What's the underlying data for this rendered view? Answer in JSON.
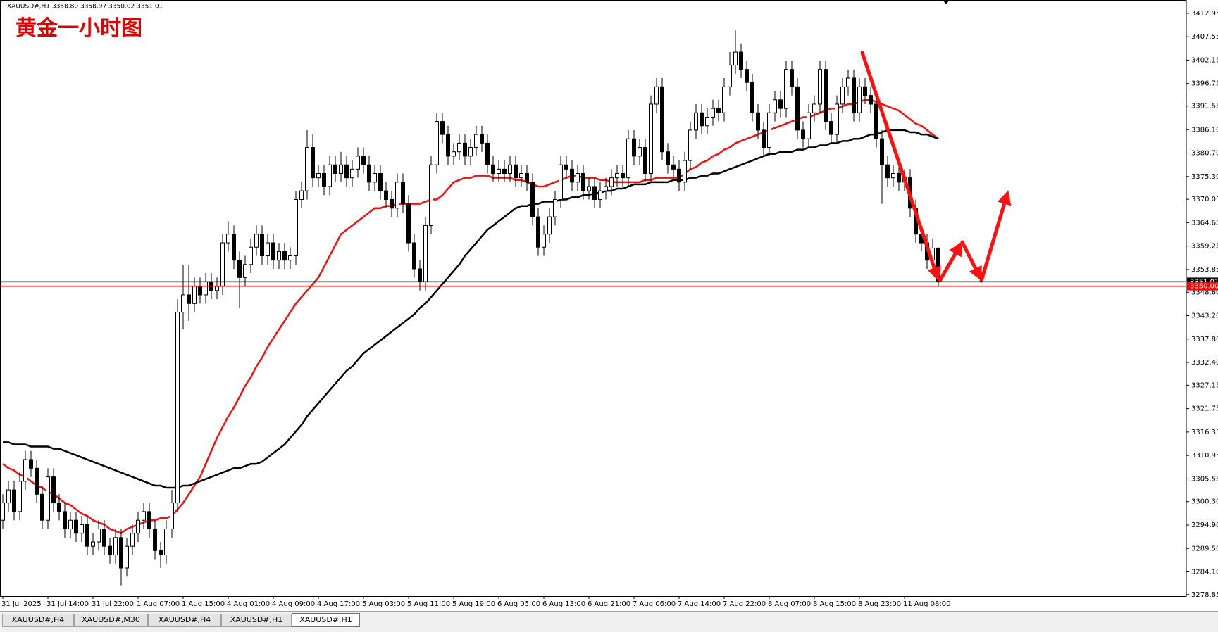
{
  "chart_data": {
    "type": "candlestick",
    "title": "黄金一小时图",
    "header": "XAUUSD#,H1  3358.80 3358.97 3350.02 3351.01",
    "categories": [
      "31 Jul 2025",
      null,
      null,
      null,
      null,
      null,
      null,
      null,
      "31 Jul 14:00",
      null,
      null,
      null,
      null,
      null,
      null,
      null,
      "31 Jul 22:00",
      null,
      null,
      null,
      null,
      null,
      null,
      null,
      "1 Aug 07:00",
      null,
      null,
      null,
      null,
      null,
      null,
      null,
      "1 Aug 15:00",
      null,
      null,
      null,
      null,
      null,
      null,
      null,
      "4 Aug 01:00",
      null,
      null,
      null,
      null,
      null,
      null,
      null,
      "4 Aug 09:00",
      null,
      null,
      null,
      null,
      null,
      null,
      null,
      "4 Aug 17:00",
      null,
      null,
      null,
      null,
      null,
      null,
      null,
      "5 Aug 03:00",
      null,
      null,
      null,
      null,
      null,
      null,
      null,
      "5 Aug 11:00",
      null,
      null,
      null,
      null,
      null,
      null,
      null,
      "5 Aug 19:00",
      null,
      null,
      null,
      null,
      null,
      null,
      null,
      "6 Aug 05:00",
      null,
      null,
      null,
      null,
      null,
      null,
      null,
      "6 Aug 13:00",
      null,
      null,
      null,
      null,
      null,
      null,
      null,
      "6 Aug 21:00",
      null,
      null,
      null,
      null,
      null,
      null,
      null,
      "7 Aug 06:00",
      null,
      null,
      null,
      null,
      null,
      null,
      null,
      "7 Aug 14:00",
      null,
      null,
      null,
      null,
      null,
      null,
      null,
      "7 Aug 22:00",
      null,
      null,
      null,
      null,
      null,
      null,
      null,
      "8 Aug 07:00",
      null,
      null,
      null,
      null,
      null,
      null,
      null,
      "8 Aug 15:00",
      null,
      null,
      null,
      null,
      null,
      null,
      null,
      "8 Aug 23:00",
      null,
      null,
      null,
      null,
      null,
      null,
      null,
      "11 Aug 08:00",
      null,
      null,
      null,
      null,
      null,
      null
    ],
    "open": [
      3296,
      3300,
      3303,
      3298,
      3305,
      3310,
      3308,
      3302,
      3296,
      3306,
      3300,
      3298,
      3294,
      3296,
      3293,
      3295,
      3290,
      3291,
      3294,
      3290,
      3288,
      3292,
      3285,
      3290,
      3293,
      3296,
      3298,
      3294,
      3289,
      3288,
      3294,
      3300,
      3344,
      3348,
      3346,
      3350,
      3348,
      3351,
      3349,
      3350,
      3360,
      3362,
      3356,
      3352,
      3355,
      3359,
      3362,
      3357,
      3360,
      3356,
      3358,
      3356,
      3357,
      3370,
      3372,
      3382,
      3375,
      3376,
      3373,
      3378,
      3376,
      3378,
      3375,
      3377,
      3380,
      3378,
      3374,
      3376,
      3372,
      3370,
      3368,
      3374,
      3369,
      3360,
      3354,
      3351,
      3364,
      3378,
      3388,
      3385,
      3380,
      3381,
      3383,
      3380,
      3382,
      3385,
      3383,
      3378,
      3376,
      3377,
      3376,
      3378,
      3375,
      3376,
      3374,
      3366,
      3359,
      3362,
      3366,
      3370,
      3378,
      3377,
      3374,
      3376,
      3372,
      3373,
      3370,
      3372,
      3373,
      3375,
      3376,
      3375,
      3384,
      3380,
      3382,
      3376,
      3392,
      3396,
      3381,
      3378,
      3377,
      3374,
      3379,
      3386,
      3390,
      3387,
      3389,
      3391,
      3390,
      3396,
      3401,
      3404,
      3400,
      3397,
      3390,
      3386,
      3382,
      3390,
      3393,
      3391,
      3400,
      3396,
      3386,
      3384,
      3390,
      3392,
      3400,
      3388,
      3385,
      3392,
      3396,
      3398,
      3390,
      3396,
      3394,
      3392,
      3384,
      3378,
      3375,
      3376,
      3374,
      3375,
      3368,
      3362,
      3360,
      3356,
      3358.8
    ],
    "high": [
      3302,
      3305,
      3305,
      3307,
      3312,
      3312,
      3310,
      3304,
      3308,
      3308,
      3302,
      3300,
      3298,
      3298,
      3297,
      3297,
      3293,
      3296,
      3296,
      3292,
      3294,
      3294,
      3292,
      3295,
      3298,
      3300,
      3300,
      3296,
      3291,
      3296,
      3303,
      3347,
      3355,
      3355,
      3352,
      3352,
      3353,
      3353,
      3352,
      3362,
      3365,
      3364,
      3358,
      3357,
      3361,
      3364,
      3364,
      3362,
      3362,
      3360,
      3360,
      3359,
      3372,
      3374,
      3386,
      3385,
      3378,
      3378,
      3380,
      3380,
      3381,
      3380,
      3379,
      3382,
      3382,
      3380,
      3378,
      3378,
      3374,
      3372,
      3376,
      3376,
      3371,
      3362,
      3356,
      3366,
      3380,
      3390,
      3390,
      3387,
      3383,
      3385,
      3385,
      3384,
      3387,
      3387,
      3385,
      3380,
      3379,
      3379,
      3380,
      3380,
      3378,
      3378,
      3376,
      3368,
      3364,
      3368,
      3372,
      3380,
      3380,
      3379,
      3378,
      3378,
      3375,
      3375,
      3374,
      3375,
      3377,
      3378,
      3378,
      3386,
      3386,
      3384,
      3384,
      3394,
      3398,
      3398,
      3383,
      3380,
      3379,
      3381,
      3388,
      3392,
      3392,
      3391,
      3393,
      3393,
      3398,
      3404,
      3409,
      3406,
      3402,
      3399,
      3392,
      3388,
      3392,
      3395,
      3395,
      3402,
      3402,
      3398,
      3388,
      3392,
      3394,
      3402,
      3402,
      3390,
      3394,
      3398,
      3400,
      3400,
      3398,
      3398,
      3396,
      3394,
      3386,
      3380,
      3378,
      3378,
      3377,
      3377,
      3370,
      3364,
      3362,
      3361,
      3358.97
    ],
    "low": [
      3294,
      3298,
      3296,
      3296,
      3303,
      3306,
      3300,
      3294,
      3294,
      3298,
      3296,
      3292,
      3292,
      3291,
      3291,
      3288,
      3288,
      3289,
      3288,
      3286,
      3286,
      3281,
      3283,
      3288,
      3291,
      3294,
      3292,
      3287,
      3285,
      3286,
      3292,
      3298,
      3340,
      3342,
      3344,
      3346,
      3346,
      3347,
      3347,
      3348,
      3358,
      3354,
      3345,
      3350,
      3353,
      3357,
      3355,
      3355,
      3354,
      3354,
      3354,
      3354,
      3355,
      3368,
      3370,
      3373,
      3373,
      3371,
      3371,
      3374,
      3374,
      3373,
      3373,
      3375,
      3376,
      3372,
      3372,
      3370,
      3368,
      3366,
      3366,
      3367,
      3358,
      3352,
      3349,
      3349,
      3362,
      3376,
      3383,
      3378,
      3378,
      3379,
      3378,
      3378,
      3380,
      3381,
      3376,
      3374,
      3374,
      3374,
      3374,
      3373,
      3373,
      3372,
      3364,
      3357,
      3357,
      3360,
      3364,
      3368,
      3375,
      3372,
      3372,
      3370,
      3370,
      3368,
      3368,
      3370,
      3371,
      3373,
      3373,
      3373,
      3378,
      3378,
      3374,
      3374,
      3390,
      3379,
      3376,
      3375,
      3372,
      3372,
      3377,
      3384,
      3385,
      3385,
      3387,
      3388,
      3388,
      3394,
      3399,
      3398,
      3395,
      3388,
      3384,
      3380,
      3380,
      3388,
      3389,
      3389,
      3394,
      3384,
      3382,
      3382,
      3388,
      3390,
      3386,
      3383,
      3383,
      3390,
      3394,
      3388,
      3388,
      3392,
      3390,
      3382,
      3369,
      3373,
      3373,
      3372,
      3372,
      3366,
      3360,
      3358,
      3354,
      3353,
      3350.02
    ],
    "close": [
      3300,
      3303,
      3298,
      3305,
      3310,
      3308,
      3302,
      3296,
      3306,
      3300,
      3298,
      3294,
      3296,
      3293,
      3295,
      3290,
      3291,
      3294,
      3290,
      3288,
      3292,
      3285,
      3290,
      3293,
      3296,
      3298,
      3294,
      3289,
      3288,
      3294,
      3300,
      3344,
      3348,
      3346,
      3350,
      3348,
      3351,
      3349,
      3350,
      3360,
      3362,
      3356,
      3352,
      3355,
      3359,
      3362,
      3357,
      3360,
      3356,
      3358,
      3356,
      3357,
      3370,
      3372,
      3382,
      3375,
      3376,
      3373,
      3378,
      3376,
      3378,
      3375,
      3377,
      3380,
      3378,
      3374,
      3376,
      3372,
      3370,
      3368,
      3374,
      3369,
      3360,
      3354,
      3351,
      3364,
      3378,
      3388,
      3385,
      3380,
      3381,
      3383,
      3380,
      3382,
      3385,
      3383,
      3378,
      3376,
      3377,
      3376,
      3378,
      3375,
      3376,
      3374,
      3366,
      3359,
      3362,
      3366,
      3370,
      3378,
      3377,
      3374,
      3376,
      3372,
      3373,
      3370,
      3372,
      3373,
      3375,
      3376,
      3375,
      3384,
      3380,
      3382,
      3376,
      3392,
      3396,
      3381,
      3378,
      3377,
      3374,
      3379,
      3386,
      3390,
      3387,
      3389,
      3391,
      3390,
      3396,
      3401,
      3404,
      3400,
      3397,
      3390,
      3386,
      3382,
      3390,
      3393,
      3391,
      3400,
      3396,
      3386,
      3384,
      3390,
      3392,
      3400,
      3388,
      3385,
      3392,
      3396,
      3398,
      3390,
      3396,
      3394,
      3392,
      3384,
      3378,
      3375,
      3376,
      3374,
      3375,
      3368,
      3362,
      3360,
      3356,
      3358.8,
      3351.01
    ],
    "lines": [
      {
        "color": "#ee1111",
        "values": [
          3309,
          3308,
          3307.5,
          3306.5,
          3306,
          3305,
          3304,
          3303.5,
          3302.5,
          3302,
          3301,
          3300,
          3299.5,
          3298.5,
          3297.5,
          3297,
          3296,
          3295.5,
          3295,
          3294,
          3293.5,
          3293,
          3294,
          3294.5,
          3295,
          3295.5,
          3296,
          3296,
          3296.5,
          3296.5,
          3297,
          3298.5,
          3300,
          3302,
          3304,
          3306,
          3309,
          3312,
          3315,
          3317.5,
          3320,
          3322,
          3324.5,
          3327,
          3329,
          3331.5,
          3333.5,
          3336,
          3338,
          3340,
          3342,
          3344,
          3346,
          3347.5,
          3349,
          3350.5,
          3352,
          3354.5,
          3357,
          3359.5,
          3362,
          3363,
          3364,
          3365,
          3366,
          3367,
          3368,
          3368,
          3368.5,
          3368.5,
          3369,
          3369,
          3369,
          3369,
          3369,
          3369.5,
          3370,
          3370,
          3371,
          3372.5,
          3374,
          3374.5,
          3375,
          3375,
          3375.5,
          3375.5,
          3375.5,
          3375,
          3375,
          3375,
          3375,
          3374.5,
          3374.5,
          3374,
          3373.5,
          3373,
          3373,
          3373.5,
          3374,
          3374.5,
          3375,
          3375.5,
          3375.5,
          3375,
          3375,
          3375,
          3374.5,
          3374.5,
          3374,
          3374,
          3374,
          3374,
          3374,
          3374,
          3374.5,
          3374.5,
          3375,
          3375,
          3375,
          3375,
          3375,
          3376,
          3377,
          3377.5,
          3378.5,
          3379,
          3380,
          3380.5,
          3381.5,
          3382,
          3383,
          3383.5,
          3384,
          3384.5,
          3385,
          3385.5,
          3386,
          3386.5,
          3387,
          3387.5,
          3388,
          3388.5,
          3389,
          3389,
          3389.5,
          3390,
          3390.5,
          3391,
          3391,
          3391.5,
          3392,
          3392,
          3392.5,
          3393,
          3393,
          3392.5,
          3392,
          3391.5,
          3391,
          3390.5,
          3389.5,
          3388.5,
          3387.5,
          3387,
          3386,
          3385,
          3384
        ]
      },
      {
        "color": "#000000",
        "values": [
          3314,
          3314,
          3313.5,
          3313.5,
          3313.5,
          3313,
          3313,
          3313,
          3313,
          3312.5,
          3312.5,
          3312,
          3311.5,
          3311,
          3310.5,
          3310,
          3309.5,
          3309,
          3308.5,
          3308,
          3307.5,
          3307,
          3306.5,
          3306,
          3305.5,
          3305,
          3304.5,
          3304,
          3304,
          3303.5,
          3303.5,
          3303.5,
          3304,
          3304,
          3304.5,
          3305,
          3305.5,
          3306,
          3306.5,
          3307,
          3307.5,
          3308,
          3308,
          3308.5,
          3309,
          3309,
          3309.5,
          3310.5,
          3311.5,
          3312.5,
          3313.5,
          3315,
          3316.5,
          3318,
          3320,
          3321.5,
          3323,
          3324.5,
          3326,
          3327.5,
          3329,
          3330.5,
          3331.5,
          3333,
          3334.5,
          3335.5,
          3336.5,
          3337.5,
          3338.5,
          3339.5,
          3340.5,
          3341.5,
          3342.5,
          3343.5,
          3345,
          3346,
          3347.5,
          3349,
          3350.5,
          3352,
          3353.5,
          3355,
          3357,
          3358.5,
          3360,
          3361.5,
          3363,
          3364,
          3365,
          3366,
          3367,
          3368,
          3368.5,
          3368.5,
          3369,
          3369,
          3369.5,
          3369.5,
          3369.5,
          3370,
          3370,
          3370.5,
          3370.5,
          3371,
          3371,
          3371.5,
          3371.5,
          3372,
          3372,
          3372.5,
          3372.5,
          3373,
          3373.5,
          3373.5,
          3373.5,
          3374,
          3374,
          3374,
          3374,
          3374.5,
          3374.5,
          3374.5,
          3375,
          3375,
          3375.5,
          3375.5,
          3376,
          3376,
          3376.5,
          3377,
          3377.5,
          3378,
          3378.5,
          3379,
          3379.5,
          3380,
          3380.5,
          3380.5,
          3381,
          3381,
          3381,
          3381.5,
          3381.5,
          3382,
          3382,
          3382.5,
          3382.5,
          3383,
          3383,
          3383.5,
          3383.5,
          3384,
          3384,
          3384.5,
          3385,
          3385,
          3385.5,
          3386,
          3386,
          3386,
          3386,
          3385.5,
          3385.5,
          3385,
          3385,
          3384.5,
          3384
        ]
      }
    ],
    "hlines": [
      {
        "value": 3351.01,
        "color": "#000000"
      },
      {
        "value": 3350,
        "label": "3350.00",
        "color": "#ff0000"
      }
    ],
    "ylim": [
      3278.5,
      3415.7
    ],
    "yticks": [
      3412.95,
      3407.55,
      3402.15,
      3396.75,
      3391.55,
      {
        "value": 3386.1,
        "label": "3386.10"
      },
      {
        "value": 3380.7,
        "label": "3380.70"
      },
      {
        "value": 3375.3,
        "label": "3375.30"
      },
      3370.05,
      3364.65,
      3359.25,
      3353.85,
      {
        "value": 3348.6,
        "label": "3348.60"
      },
      {
        "value": 3343.2,
        "label": "3343.20"
      },
      {
        "value": 3337.8,
        "label": "3337.80"
      },
      {
        "value": 3332.4,
        "label": "3332.40"
      },
      3327.15,
      3321.75,
      3316.35,
      3310.95,
      3305.55,
      {
        "value": 3300.3,
        "label": "3300.30"
      },
      {
        "value": 3294.9,
        "label": "3294.90"
      },
      {
        "value": 3289.5,
        "label": "3289.50"
      },
      {
        "value": 3284.1,
        "label": "3284.10"
      },
      3278.85
    ],
    "up_color": "#ffffff",
    "down_color": "#000000"
  },
  "tabs": [
    "XAUUSD#,H4",
    "XAUUSD#,M30",
    "XAUUSD#,H4",
    "XAUUSD#,H1",
    "XAUUSD#,H1"
  ],
  "active_tab": 4
}
